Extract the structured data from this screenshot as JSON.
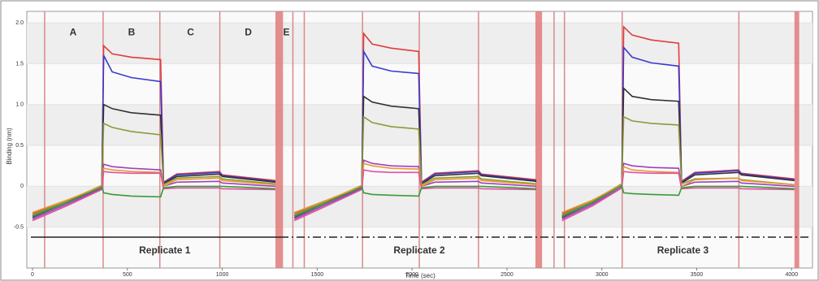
{
  "chart_data": {
    "type": "line",
    "xlabel": "Time (sec)",
    "ylabel": "Binding (nm)",
    "xlim": [
      -30,
      4110
    ],
    "ylim": [
      -1.0,
      2.14
    ],
    "xticks": [
      0,
      500,
      1000,
      1500,
      2000,
      2500,
      3000,
      3500,
      4000
    ],
    "yticks": [
      {
        "value": 2,
        "label": "2.0"
      },
      1.5,
      {
        "value": 1,
        "label": "1.0"
      },
      0.5,
      0,
      -0.5
    ],
    "grid": true,
    "step_boundaries": [
      64,
      372,
      671,
      987,
      1372,
      1432,
      1739,
      2038,
      2350,
      2748,
      2803,
      3107,
      3722
    ],
    "regeneration_bands": [
      [
        1280,
        1320
      ],
      [
        2650,
        2685
      ],
      [
        4015,
        4040
      ]
    ],
    "annotations": [
      {
        "text": "A",
        "x": 214,
        "y": 1.88
      },
      {
        "text": "B",
        "x": 522,
        "y": 1.88
      },
      {
        "text": "C",
        "x": 833,
        "y": 1.88
      },
      {
        "text": "D",
        "x": 1137,
        "y": 1.88
      },
      {
        "text": "E",
        "x": 1338,
        "y": 1.88
      },
      {
        "text": "Replicate 1",
        "x": 697,
        "y": -0.79
      },
      {
        "text": "Replicate 2",
        "x": 2038,
        "y": -0.79
      },
      {
        "text": "Replicate 3",
        "x": 3427,
        "y": -0.79
      }
    ],
    "x": [
      0,
      180,
      365,
      375,
      420,
      520,
      675,
      690,
      760,
      985,
      1000,
      1280,
      1300,
      1380,
      1550,
      1735,
      1745,
      1790,
      1890,
      2035,
      2050,
      2120,
      2350,
      2365,
      2655,
      2700,
      2790,
      2950,
      3105,
      3115,
      3160,
      3260,
      3405,
      3420,
      3490,
      3720,
      3735,
      4015
    ],
    "series": [
      {
        "color": "#e03c3c",
        "values": [
          -0.33,
          -0.18,
          -0.02,
          1.72,
          1.62,
          1.58,
          1.55,
          0.05,
          0.15,
          0.18,
          0.14,
          0.07,
          null,
          -0.33,
          -0.18,
          -0.02,
          1.87,
          1.74,
          1.69,
          1.65,
          0.05,
          0.16,
          0.19,
          0.15,
          0.08,
          null,
          -0.33,
          -0.18,
          0.02,
          1.95,
          1.85,
          1.79,
          1.75,
          0.06,
          0.17,
          0.2,
          0.16,
          0.09
        ]
      },
      {
        "color": "#3a3ad0",
        "values": [
          -0.36,
          -0.2,
          -0.02,
          1.6,
          1.4,
          1.33,
          1.28,
          0.04,
          0.14,
          0.17,
          0.13,
          0.06,
          null,
          -0.36,
          -0.2,
          -0.02,
          1.65,
          1.47,
          1.41,
          1.38,
          0.04,
          0.15,
          0.18,
          0.14,
          0.07,
          null,
          -0.36,
          -0.2,
          0.01,
          1.7,
          1.58,
          1.51,
          1.47,
          0.05,
          0.16,
          0.19,
          0.15,
          0.08
        ]
      },
      {
        "color": "#333333",
        "values": [
          -0.38,
          -0.2,
          0.0,
          1.0,
          0.95,
          0.9,
          0.87,
          0.03,
          0.12,
          0.15,
          0.12,
          0.05,
          null,
          -0.38,
          -0.2,
          0.0,
          1.1,
          1.03,
          0.98,
          0.95,
          0.03,
          0.13,
          0.16,
          0.13,
          0.06,
          null,
          -0.38,
          -0.2,
          0.02,
          1.2,
          1.1,
          1.06,
          1.04,
          0.04,
          0.14,
          0.17,
          0.14,
          0.07
        ]
      },
      {
        "color": "#8c9a3a",
        "values": [
          -0.35,
          -0.18,
          0.01,
          0.77,
          0.72,
          0.67,
          0.63,
          0.02,
          0.1,
          0.12,
          0.09,
          0.03,
          null,
          -0.35,
          -0.18,
          0.01,
          0.85,
          0.78,
          0.73,
          0.7,
          0.02,
          0.1,
          0.12,
          0.09,
          0.03,
          null,
          -0.35,
          -0.18,
          0.03,
          0.85,
          0.8,
          0.77,
          0.75,
          0.03,
          0.09,
          0.1,
          0.08,
          0.02
        ]
      },
      {
        "color": "#a040c0",
        "values": [
          -0.4,
          -0.22,
          -0.03,
          0.27,
          0.24,
          0.22,
          0.2,
          0.0,
          0.05,
          0.06,
          0.04,
          0.0,
          null,
          -0.4,
          -0.22,
          -0.03,
          0.32,
          0.28,
          0.25,
          0.24,
          0.0,
          0.05,
          0.06,
          0.04,
          0.0,
          null,
          -0.4,
          -0.22,
          -0.01,
          0.28,
          0.25,
          0.23,
          0.22,
          0.0,
          0.05,
          0.06,
          0.04,
          0.0
        ]
      },
      {
        "color": "#e89a30",
        "values": [
          -0.32,
          -0.17,
          0.0,
          0.22,
          0.2,
          0.18,
          0.17,
          0.0,
          0.08,
          0.1,
          0.07,
          0.02,
          null,
          -0.32,
          -0.17,
          0.0,
          0.28,
          0.25,
          0.22,
          0.21,
          0.0,
          0.08,
          0.1,
          0.07,
          0.02,
          null,
          -0.32,
          -0.17,
          0.02,
          0.24,
          0.2,
          0.18,
          0.17,
          0.0,
          0.08,
          0.1,
          0.07,
          0.02
        ]
      },
      {
        "color": "#e050a0",
        "values": [
          -0.42,
          -0.24,
          -0.04,
          0.18,
          0.17,
          0.16,
          0.16,
          -0.03,
          -0.02,
          -0.02,
          -0.03,
          -0.04,
          null,
          -0.42,
          -0.24,
          -0.04,
          0.2,
          0.18,
          0.17,
          0.17,
          -0.03,
          -0.02,
          -0.02,
          -0.03,
          -0.04,
          null,
          -0.42,
          -0.24,
          -0.02,
          0.18,
          0.17,
          0.16,
          0.16,
          -0.03,
          -0.02,
          -0.02,
          -0.03,
          -0.04
        ]
      },
      {
        "color": "#3a9a3a",
        "values": [
          -0.37,
          -0.2,
          -0.01,
          -0.08,
          -0.1,
          -0.12,
          -0.13,
          -0.02,
          0.0,
          0.0,
          0.0,
          -0.03,
          null,
          -0.37,
          -0.2,
          -0.01,
          -0.08,
          -0.1,
          -0.11,
          -0.12,
          -0.02,
          0.0,
          0.0,
          0.0,
          -0.03,
          null,
          -0.37,
          -0.2,
          0.01,
          -0.08,
          -0.09,
          -0.1,
          -0.11,
          -0.02,
          0.0,
          0.0,
          0.0,
          -0.03
        ]
      }
    ]
  }
}
